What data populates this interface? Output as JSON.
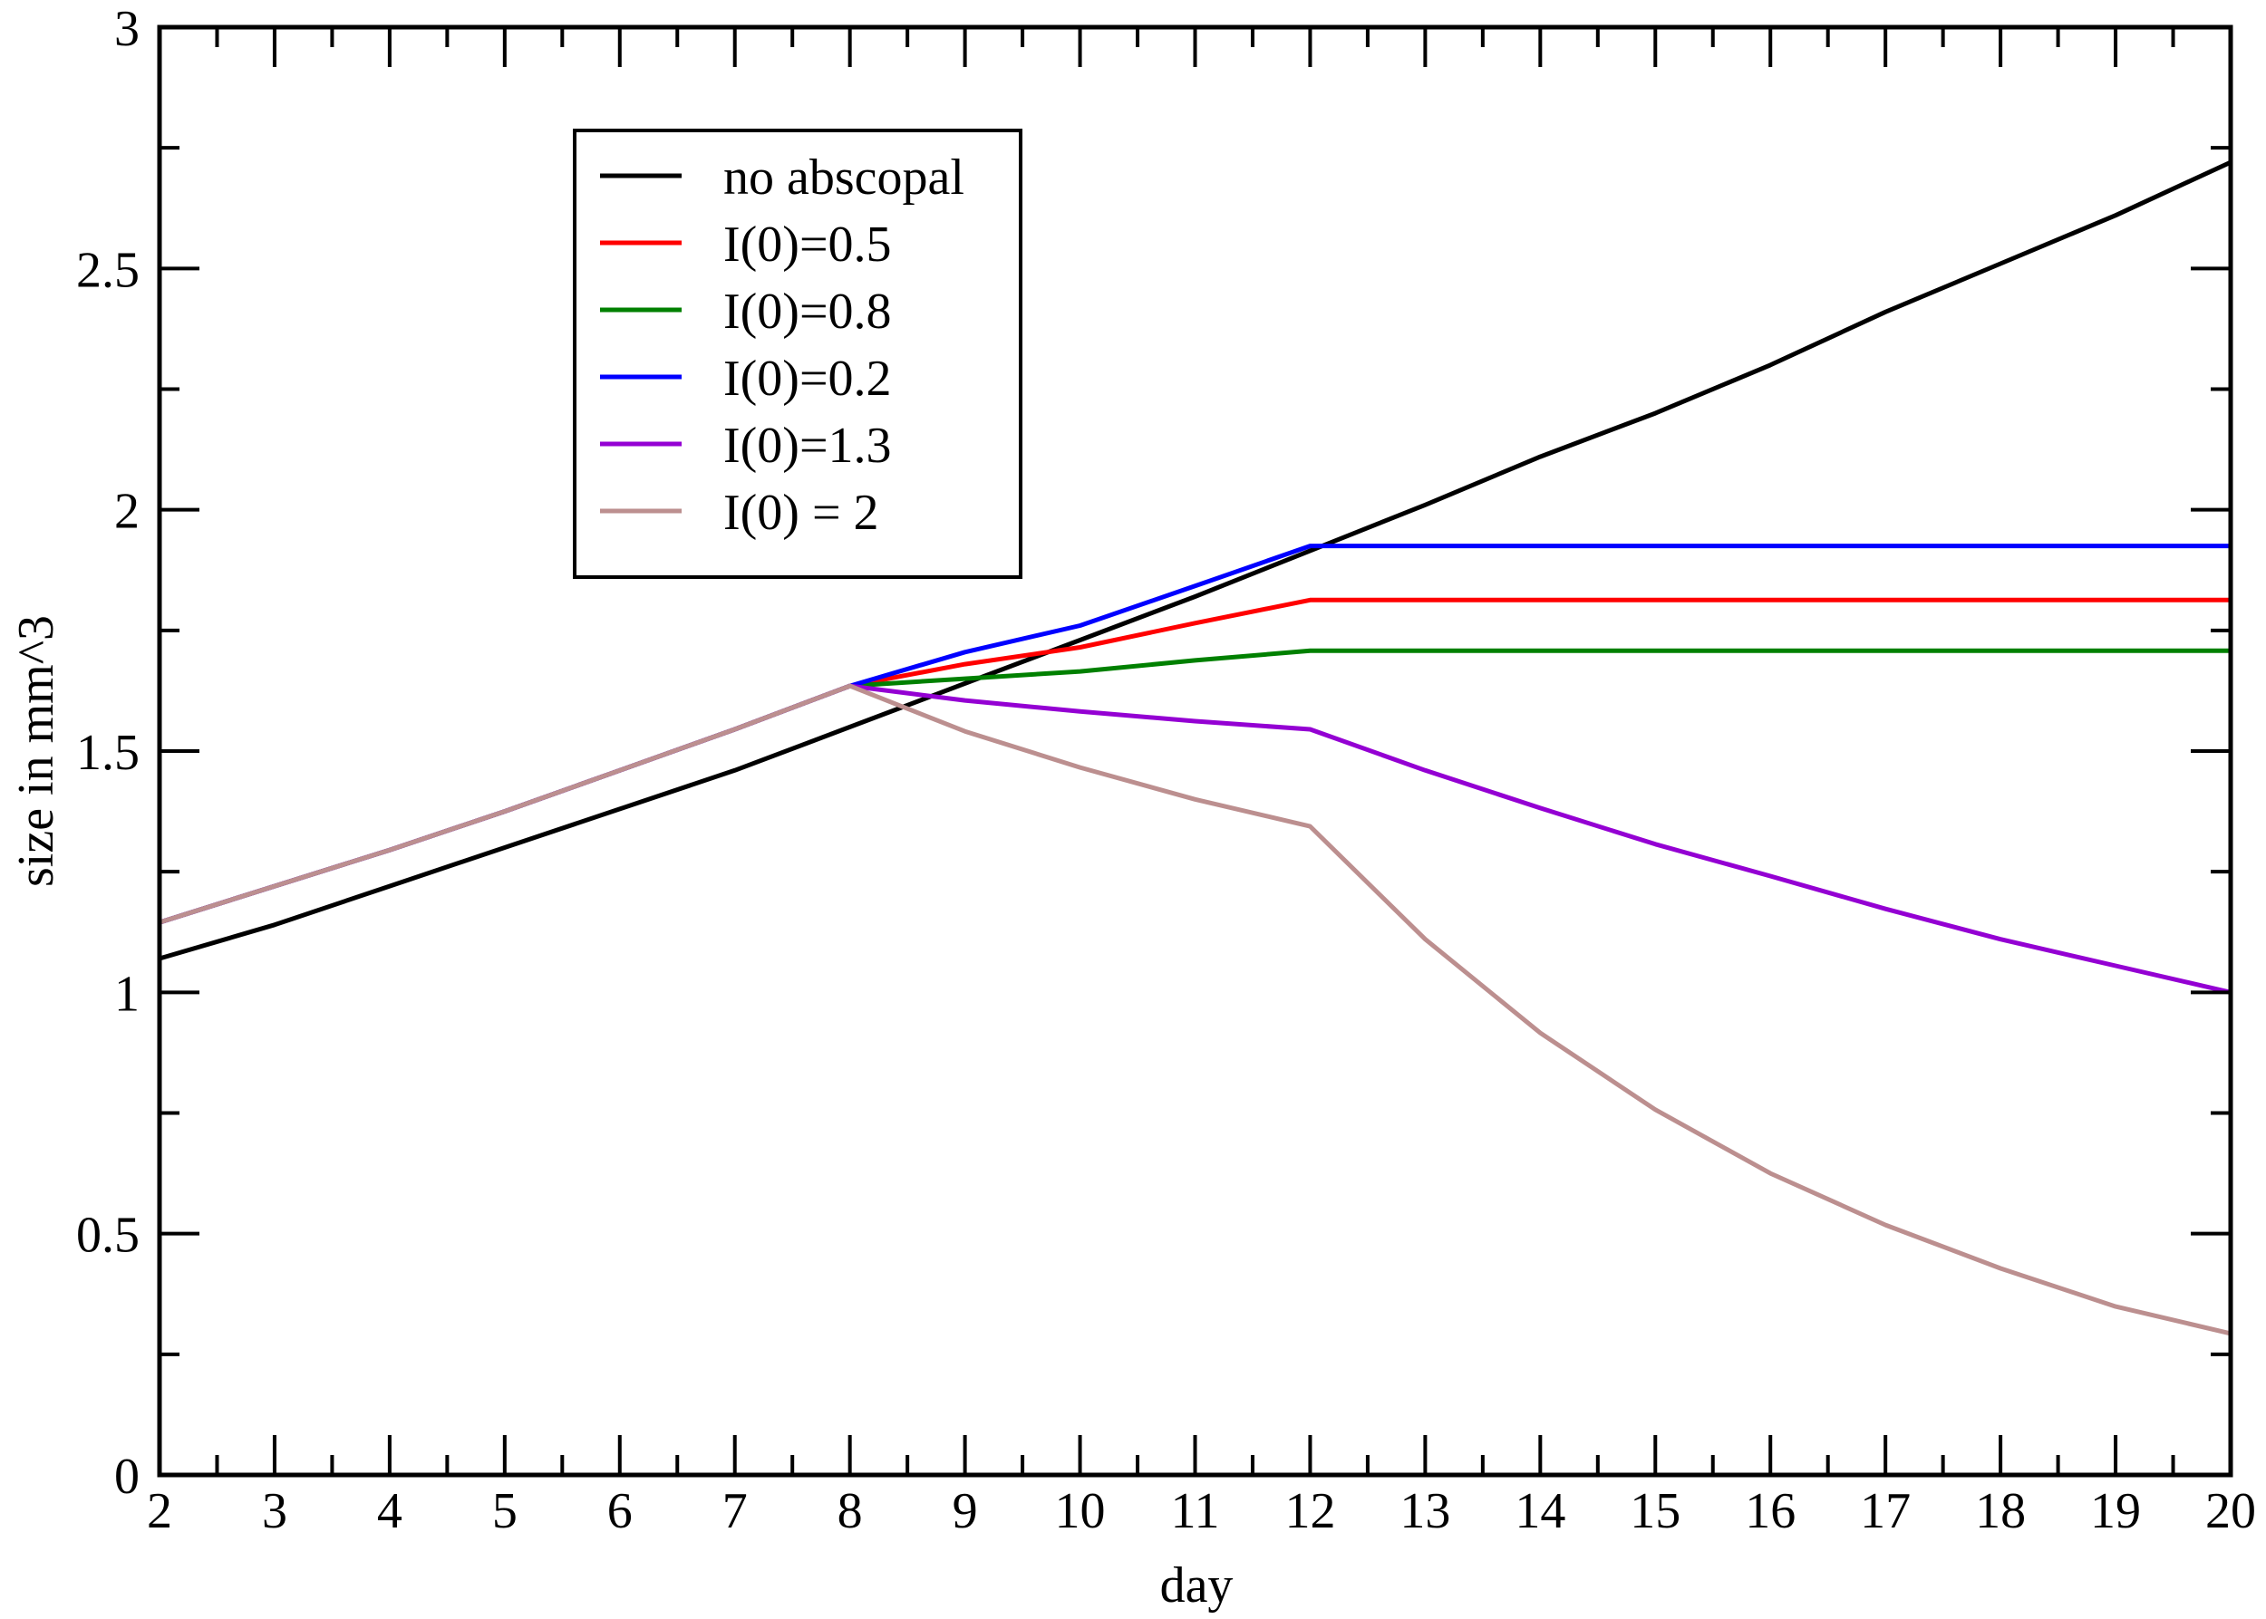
{
  "chart_data": {
    "type": "line",
    "title": "",
    "xlabel": "day",
    "ylabel": "size in mm^3",
    "xlim": [
      2,
      20
    ],
    "ylim": [
      0,
      3
    ],
    "xticks": [
      2,
      3,
      4,
      5,
      6,
      7,
      8,
      9,
      10,
      11,
      12,
      13,
      14,
      15,
      16,
      17,
      18,
      19,
      20
    ],
    "yticks": [
      0,
      0.5,
      1,
      1.5,
      2,
      2.5,
      3
    ],
    "ytick_labels": [
      "0",
      "0.5",
      "1",
      "1.5",
      "2",
      "2.5",
      "3"
    ],
    "grid": false,
    "legend_position": "upper-left-inset",
    "series": [
      {
        "name": "no abscopal",
        "color": "#000000",
        "x": [
          2,
          3,
          4,
          5,
          6,
          7,
          8,
          9,
          10,
          11,
          12,
          13,
          14,
          15,
          16,
          17,
          18,
          19,
          20
        ],
        "values": [
          1.07,
          1.14,
          1.22,
          1.3,
          1.38,
          1.46,
          1.55,
          1.64,
          1.73,
          1.82,
          1.915,
          2.01,
          2.11,
          2.2,
          2.3,
          2.41,
          2.51,
          2.61,
          2.72
        ]
      },
      {
        "name": "I(0)=0.5",
        "color": "#ff0000",
        "x": [
          2,
          3,
          4,
          5,
          6,
          7,
          8,
          9,
          10,
          11,
          12,
          13,
          14,
          15,
          16,
          17,
          18,
          19,
          20
        ],
        "values": [
          1.145,
          1.22,
          1.295,
          1.375,
          1.46,
          1.545,
          1.635,
          1.68,
          1.715,
          1.765,
          1.813,
          1.813,
          1.813,
          1.813,
          1.813,
          1.813,
          1.813,
          1.813,
          1.813
        ]
      },
      {
        "name": "I(0)=0.8",
        "color": "#008000",
        "x": [
          2,
          3,
          4,
          5,
          6,
          7,
          8,
          9,
          10,
          11,
          12,
          13,
          14,
          15,
          16,
          17,
          18,
          19,
          20
        ],
        "values": [
          1.145,
          1.22,
          1.295,
          1.375,
          1.46,
          1.545,
          1.635,
          1.65,
          1.665,
          1.688,
          1.708,
          1.708,
          1.708,
          1.708,
          1.708,
          1.708,
          1.708,
          1.708,
          1.708
        ]
      },
      {
        "name": "I(0)=0.2",
        "color": "#0000ff",
        "x": [
          2,
          3,
          4,
          5,
          6,
          7,
          8,
          9,
          10,
          11,
          12,
          13,
          14,
          15,
          16,
          17,
          18,
          19,
          20
        ],
        "values": [
          1.145,
          1.22,
          1.295,
          1.375,
          1.46,
          1.545,
          1.635,
          1.705,
          1.76,
          1.842,
          1.925,
          1.925,
          1.925,
          1.925,
          1.925,
          1.925,
          1.925,
          1.925,
          1.925
        ]
      },
      {
        "name": "I(0)=1.3",
        "color": "#9400d3",
        "x": [
          2,
          3,
          4,
          5,
          6,
          7,
          8,
          9,
          10,
          11,
          12,
          13,
          14,
          15,
          16,
          17,
          18,
          19,
          20
        ],
        "values": [
          1.145,
          1.22,
          1.295,
          1.375,
          1.46,
          1.545,
          1.635,
          1.605,
          1.582,
          1.562,
          1.545,
          1.46,
          1.382,
          1.307,
          1.241,
          1.173,
          1.11,
          1.055,
          1.0
        ]
      },
      {
        "name": "I(0) = 2",
        "color": "#bc8f8f",
        "x": [
          2,
          3,
          4,
          5,
          6,
          7,
          8,
          9,
          10,
          11,
          12,
          13,
          14,
          15,
          16,
          17,
          18,
          19,
          20
        ],
        "values": [
          1.145,
          1.22,
          1.295,
          1.375,
          1.46,
          1.545,
          1.635,
          1.541,
          1.466,
          1.4,
          1.344,
          1.11,
          0.916,
          0.757,
          0.625,
          0.518,
          0.428,
          0.349,
          0.293
        ]
      }
    ]
  },
  "legend": {
    "items": [
      {
        "label": "no abscopal",
        "color": "#000000"
      },
      {
        "label": "I(0)=0.5",
        "color": "#ff0000"
      },
      {
        "label": "I(0)=0.8",
        "color": "#008000"
      },
      {
        "label": "I(0)=0.2",
        "color": "#0000ff"
      },
      {
        "label": "I(0)=1.3",
        "color": "#9400d3"
      },
      {
        "label": "I(0) = 2",
        "color": "#bc8f8f"
      }
    ]
  },
  "axes": {
    "xlabel": "day",
    "ylabel": "size in mm^3"
  }
}
